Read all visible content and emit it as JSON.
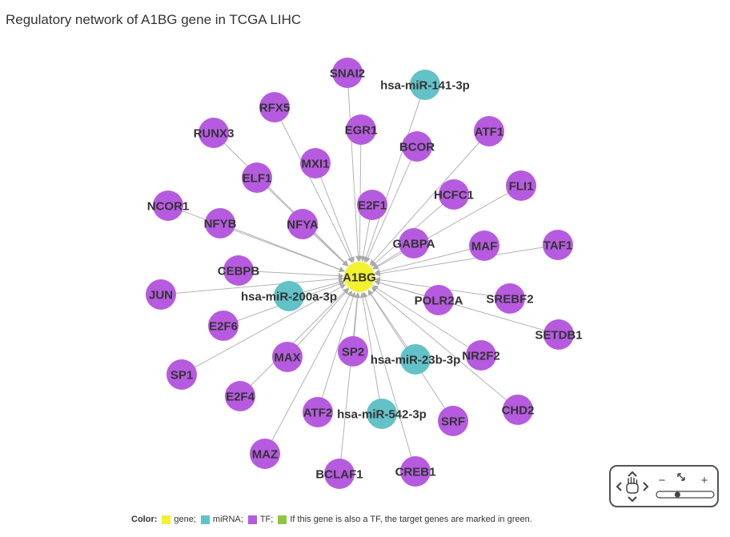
{
  "title": "Regulatory network of A1BG gene in TCGA LIHC",
  "colors": {
    "gene": "#f2f230",
    "miRNA": "#62c2c8",
    "TF": "#b65be0",
    "tf_target": "#8cc63f",
    "edge": "#b3b3b3"
  },
  "network": {
    "center": "A1BG",
    "nodes": [
      {
        "id": "A1BG",
        "label": "A1BG",
        "type": "gene"
      },
      {
        "id": "SNAI2",
        "label": "SNAI2",
        "type": "TF"
      },
      {
        "id": "hsa-miR-141-3p",
        "label": "hsa-miR-141-3p",
        "type": "miRNA"
      },
      {
        "id": "RFX5",
        "label": "RFX5",
        "type": "TF"
      },
      {
        "id": "EGR1",
        "label": "EGR1",
        "type": "TF"
      },
      {
        "id": "ATF1",
        "label": "ATF1",
        "type": "TF"
      },
      {
        "id": "RUNX3",
        "label": "RUNX3",
        "type": "TF"
      },
      {
        "id": "BCOR",
        "label": "BCOR",
        "type": "TF"
      },
      {
        "id": "MXI1",
        "label": "MXI1",
        "type": "TF"
      },
      {
        "id": "ELF1",
        "label": "ELF1",
        "type": "TF"
      },
      {
        "id": "FLI1",
        "label": "FLI1",
        "type": "TF"
      },
      {
        "id": "HCFC1",
        "label": "HCFC1",
        "type": "TF"
      },
      {
        "id": "E2F1",
        "label": "E2F1",
        "type": "TF"
      },
      {
        "id": "NCOR1",
        "label": "NCOR1",
        "type": "TF"
      },
      {
        "id": "NFYB",
        "label": "NFYB",
        "type": "TF"
      },
      {
        "id": "NFYA",
        "label": "NFYA",
        "type": "TF"
      },
      {
        "id": "GABPA",
        "label": "GABPA",
        "type": "TF"
      },
      {
        "id": "MAF",
        "label": "MAF",
        "type": "TF"
      },
      {
        "id": "TAF1",
        "label": "TAF1",
        "type": "TF"
      },
      {
        "id": "CEBPB",
        "label": "CEBPB",
        "type": "TF"
      },
      {
        "id": "JUN",
        "label": "JUN",
        "type": "TF"
      },
      {
        "id": "hsa-miR-200a-3p",
        "label": "hsa-miR-200a-3p",
        "type": "miRNA"
      },
      {
        "id": "POLR2A",
        "label": "POLR2A",
        "type": "TF"
      },
      {
        "id": "SREBF2",
        "label": "SREBF2",
        "type": "TF"
      },
      {
        "id": "E2F6",
        "label": "E2F6",
        "type": "TF"
      },
      {
        "id": "SETDB1",
        "label": "SETDB1",
        "type": "TF"
      },
      {
        "id": "MAX",
        "label": "MAX",
        "type": "TF"
      },
      {
        "id": "SP2",
        "label": "SP2",
        "type": "TF"
      },
      {
        "id": "hsa-miR-23b-3p",
        "label": "hsa-miR-23b-3p",
        "type": "miRNA"
      },
      {
        "id": "NR2F2",
        "label": "NR2F2",
        "type": "TF"
      },
      {
        "id": "SP1",
        "label": "SP1",
        "type": "TF"
      },
      {
        "id": "E2F4",
        "label": "E2F4",
        "type": "TF"
      },
      {
        "id": "CHD2",
        "label": "CHD2",
        "type": "TF"
      },
      {
        "id": "ATF2",
        "label": "ATF2",
        "type": "TF"
      },
      {
        "id": "hsa-miR-542-3p",
        "label": "hsa-miR-542-3p",
        "type": "miRNA"
      },
      {
        "id": "SRF",
        "label": "SRF",
        "type": "TF"
      },
      {
        "id": "MAZ",
        "label": "MAZ",
        "type": "TF"
      },
      {
        "id": "BCLAF1",
        "label": "BCLAF1",
        "type": "TF"
      },
      {
        "id": "CREB1",
        "label": "CREB1",
        "type": "TF"
      }
    ]
  },
  "legend": {
    "label": "Color:",
    "items": [
      {
        "text": "gene;",
        "color": "#f2f230"
      },
      {
        "text": "miRNA;",
        "color": "#62c2c8"
      },
      {
        "text": "TF;",
        "color": "#b65be0"
      },
      {
        "text": "If this gene is also a TF,  the target genes are marked in green.",
        "color": "#8cc63f"
      }
    ]
  },
  "controls": {
    "zoom_out": "−",
    "zoom_in": "+",
    "zoom_level": 0.35
  }
}
